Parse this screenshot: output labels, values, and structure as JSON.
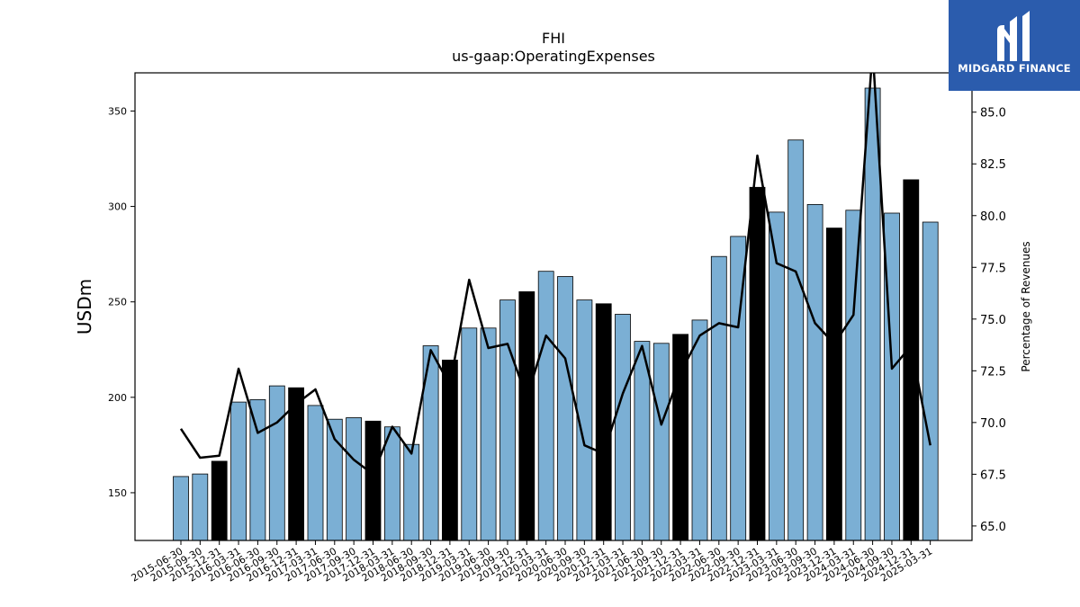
{
  "chart_data": {
    "type": "bar",
    "title": "FHI",
    "subtitle": "us-gaap:OperatingExpenses",
    "ylabel": "USDm",
    "y2label": "Percentage of Revenues",
    "ylim": [
      125,
      370
    ],
    "y2lim": [
      64.3,
      86.9
    ],
    "yticks": [
      150,
      200,
      250,
      300,
      350
    ],
    "y2ticks": [
      "65.0",
      "67.5",
      "70.0",
      "72.5",
      "75.0",
      "77.5",
      "80.0",
      "82.5",
      "85.0"
    ],
    "categories": [
      "2015-06-30",
      "2015-09-30",
      "2015-12-31",
      "2016-03-31",
      "2016-06-30",
      "2016-09-30",
      "2016-12-31",
      "2017-03-31",
      "2017-06-30",
      "2017-09-30",
      "2017-12-31",
      "2018-03-31",
      "2018-06-30",
      "2018-09-30",
      "2018-12-31",
      "2019-03-31",
      "2019-06-30",
      "2019-09-30",
      "2019-12-31",
      "2020-03-31",
      "2020-06-30",
      "2020-09-30",
      "2020-12-31",
      "2021-03-31",
      "2021-06-30",
      "2021-09-30",
      "2021-12-31",
      "2022-03-31",
      "2022-06-30",
      "2022-09-30",
      "2022-12-31",
      "2023-03-31",
      "2023-06-30",
      "2023-09-30",
      "2023-12-31",
      "2024-03-31",
      "2024-06-30",
      "2024-09-30",
      "2024-12-31",
      "2025-03-31"
    ],
    "series": [
      {
        "values": [
          158.5,
          159.8,
          166.5,
          197.5,
          198.8,
          206.0,
          205.0,
          195.7,
          188.5,
          189.3,
          187.5,
          184.5,
          175.3,
          227.0,
          219.5,
          236.3,
          236.3,
          251.0,
          255.3,
          266.0,
          263.3,
          251.0,
          249.0,
          243.5,
          229.3,
          228.3,
          233.0,
          240.5,
          273.8,
          284.3,
          310.0,
          297.0,
          334.8,
          301.0,
          288.7,
          298.0,
          362.0,
          296.5,
          314.0,
          291.8
        ]
      },
      {
        "values": [
          69.7,
          68.3,
          68.4,
          72.6,
          69.5,
          70.0,
          70.9,
          71.6,
          69.2,
          68.2,
          67.5,
          69.8,
          68.5,
          73.5,
          71.8,
          76.9,
          73.6,
          73.8,
          71.2,
          74.2,
          73.1,
          68.9,
          68.5,
          71.4,
          73.7,
          69.9,
          72.4,
          74.2,
          74.8,
          74.6,
          82.9,
          77.7,
          77.3,
          74.8,
          73.8,
          75.2,
          88.0,
          72.6,
          73.7,
          68.9
        ]
      }
    ],
    "highlight_indices": [
      2,
      6,
      10,
      14,
      18,
      22,
      26,
      30,
      34,
      38
    ],
    "colors": {
      "bar": "#7bafd4",
      "bar_highlight": "#000000",
      "line": "#000000",
      "edge": "#000000"
    }
  },
  "logo": {
    "text": "MIDGARD FINANCE",
    "color": "#2b5cad"
  }
}
